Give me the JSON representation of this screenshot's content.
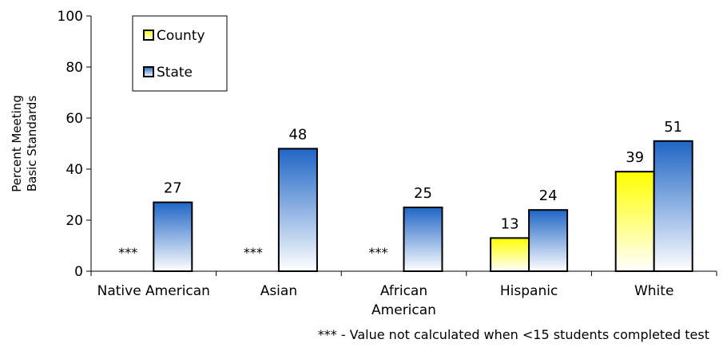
{
  "chart_data": {
    "type": "bar",
    "categories": [
      "Native American",
      "Asian",
      "African American",
      "Hispanic",
      "White"
    ],
    "category_labels": [
      [
        "Native American"
      ],
      [
        "Asian"
      ],
      [
        "African",
        "American"
      ],
      [
        "Hispanic"
      ],
      [
        "White"
      ]
    ],
    "series": [
      {
        "name": "County",
        "values": [
          null,
          null,
          null,
          13,
          39
        ],
        "fill_top": "#ffff00",
        "fill_bottom": "#ffffff"
      },
      {
        "name": "State",
        "values": [
          27,
          48,
          25,
          24,
          51
        ],
        "fill_top": "#1f66c6",
        "fill_bottom": "#ffffff"
      }
    ],
    "missing_label": "***",
    "ylabel": [
      "Percent Meeting",
      "Basic Standards"
    ],
    "ylim": [
      0,
      100
    ],
    "yticks": [
      0,
      20,
      40,
      60,
      80,
      100
    ],
    "grid": false,
    "legend_position": "top-left"
  },
  "footnote": "*** - Value not calculated when <15 students completed test"
}
